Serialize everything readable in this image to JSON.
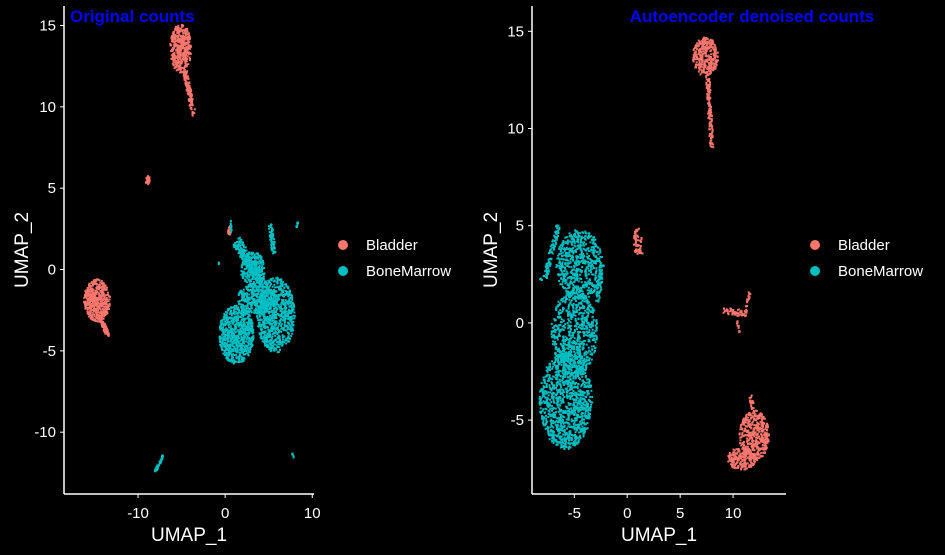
{
  "page": {
    "background": "#000000"
  },
  "chart_data": [
    {
      "type": "scatter",
      "title": "Original counts",
      "title_color": "#0000FF",
      "xlabel": "UMAP_1",
      "ylabel": "UMAP_2",
      "xlim": [
        -18.5,
        10.2
      ],
      "ylim": [
        -13.8,
        16.2
      ],
      "xticks": [
        -10,
        0,
        10
      ],
      "yticks": [
        -10,
        -5,
        0,
        5,
        10,
        15
      ],
      "grid": false,
      "legend": "right",
      "series": [
        {
          "name": "Bladder",
          "color": "#F8766D",
          "clusters": [
            {
              "shape": "ellipse",
              "cx": -5.1,
              "cy": 13.6,
              "rx": 1.2,
              "ry": 1.5,
              "n": 420,
              "seed": 11
            },
            {
              "shape": "line",
              "x1": -4.6,
              "y1": 12.2,
              "x2": -3.6,
              "y2": 9.5,
              "w": 0.5,
              "n": 110,
              "seed": 12
            },
            {
              "shape": "ellipse",
              "cx": -14.7,
              "cy": -1.9,
              "rx": 1.5,
              "ry": 1.3,
              "n": 480,
              "seed": 13
            },
            {
              "shape": "line",
              "x1": -14.3,
              "y1": -3.0,
              "x2": -13.4,
              "y2": -4.1,
              "w": 0.35,
              "n": 60,
              "seed": 14
            },
            {
              "shape": "ellipse",
              "cx": -8.9,
              "cy": 5.5,
              "rx": 0.25,
              "ry": 0.3,
              "n": 30,
              "seed": 15
            },
            {
              "shape": "ellipse",
              "cx": 0.5,
              "cy": 2.4,
              "rx": 0.2,
              "ry": 0.3,
              "n": 20,
              "seed": 16
            }
          ]
        },
        {
          "name": "BoneMarrow",
          "color": "#00BFC4",
          "clusters": [
            {
              "shape": "line",
              "x1": 1.2,
              "y1": 1.8,
              "x2": 4.5,
              "y2": -1.0,
              "w": 0.9,
              "n": 260,
              "seed": 21
            },
            {
              "shape": "ellipse",
              "cx": 3.2,
              "cy": 0.0,
              "rx": 1.4,
              "ry": 1.1,
              "n": 220,
              "seed": 22
            },
            {
              "shape": "ellipse",
              "cx": 1.3,
              "cy": -4.0,
              "rx": 2.0,
              "ry": 1.8,
              "n": 700,
              "seed": 23
            },
            {
              "shape": "ellipse",
              "cx": 5.8,
              "cy": -2.8,
              "rx": 2.2,
              "ry": 2.3,
              "n": 800,
              "seed": 24
            },
            {
              "shape": "ellipse",
              "cx": 3.6,
              "cy": -1.8,
              "rx": 2.2,
              "ry": 0.9,
              "n": 350,
              "seed": 25
            },
            {
              "shape": "line",
              "x1": 5.2,
              "y1": 2.8,
              "x2": 5.6,
              "y2": 1.0,
              "w": 0.45,
              "n": 70,
              "seed": 26
            },
            {
              "shape": "line",
              "x1": 0.7,
              "y1": 3.0,
              "x2": 0.7,
              "y2": 2.2,
              "w": 0.12,
              "n": 12,
              "seed": 27
            },
            {
              "shape": "line",
              "x1": 8.4,
              "y1": 3.0,
              "x2": 8.2,
              "y2": 2.6,
              "w": 0.1,
              "n": 8,
              "seed": 28
            },
            {
              "shape": "line",
              "x1": -8.1,
              "y1": -12.5,
              "x2": -7.1,
              "y2": -11.4,
              "w": 0.2,
              "n": 40,
              "seed": 29
            },
            {
              "shape": "line",
              "x1": 7.9,
              "y1": -11.6,
              "x2": 7.7,
              "y2": -11.3,
              "w": 0.1,
              "n": 6,
              "seed": 30
            },
            {
              "shape": "ellipse",
              "cx": -0.7,
              "cy": 0.4,
              "rx": 0.08,
              "ry": 0.08,
              "n": 3,
              "seed": 31
            }
          ]
        }
      ]
    },
    {
      "type": "scatter",
      "title": "Autoencoder denoised counts",
      "title_color": "#0000FF",
      "xlabel": "UMAP_1",
      "ylabel": "UMAP_2",
      "xlim": [
        -9.0,
        15.0
      ],
      "ylim": [
        -8.8,
        16.3
      ],
      "xticks": [
        -5,
        0,
        5,
        10
      ],
      "yticks": [
        -5,
        0,
        5,
        10,
        15
      ],
      "grid": false,
      "legend": "right",
      "series": [
        {
          "name": "Bladder",
          "color": "#F8766D",
          "clusters": [
            {
              "shape": "ellipse",
              "cx": 7.4,
              "cy": 13.7,
              "rx": 1.2,
              "ry": 1.0,
              "n": 320,
              "seed": 41
            },
            {
              "shape": "line",
              "x1": 7.6,
              "y1": 12.8,
              "x2": 8.0,
              "y2": 9.0,
              "w": 0.35,
              "n": 130,
              "seed": 42
            },
            {
              "shape": "ellipse",
              "cx": 12.0,
              "cy": -5.8,
              "rx": 1.4,
              "ry": 1.3,
              "n": 420,
              "seed": 43
            },
            {
              "shape": "ellipse",
              "cx": 10.8,
              "cy": -7.0,
              "rx": 1.3,
              "ry": 0.6,
              "n": 200,
              "seed": 44
            },
            {
              "shape": "line",
              "x1": 11.9,
              "y1": -4.4,
              "x2": 11.6,
              "y2": -3.7,
              "w": 0.3,
              "n": 20,
              "seed": 45
            },
            {
              "shape": "line",
              "x1": 9.0,
              "y1": 0.6,
              "x2": 11.3,
              "y2": 0.5,
              "w": 0.35,
              "n": 50,
              "seed": 46
            },
            {
              "shape": "line",
              "x1": 11.0,
              "y1": 0.4,
              "x2": 11.7,
              "y2": 1.8,
              "w": 0.2,
              "n": 20,
              "seed": 47
            },
            {
              "shape": "line",
              "x1": 10.4,
              "y1": 0.2,
              "x2": 10.6,
              "y2": -0.6,
              "w": 0.15,
              "n": 10,
              "seed": 48
            },
            {
              "shape": "ellipse",
              "cx": 1.0,
              "cy": 4.2,
              "rx": 0.4,
              "ry": 0.7,
              "n": 45,
              "seed": 49
            },
            {
              "shape": "line",
              "x1": 1.0,
              "y1": 3.7,
              "x2": 1.5,
              "y2": 3.6,
              "w": 0.15,
              "n": 10,
              "seed": 50
            }
          ]
        },
        {
          "name": "BoneMarrow",
          "color": "#00BFC4",
          "clusters": [
            {
              "shape": "ellipse",
              "cx": -5.8,
              "cy": -4.0,
              "rx": 2.5,
              "ry": 2.5,
              "n": 1100,
              "seed": 61
            },
            {
              "shape": "ellipse",
              "cx": -5.0,
              "cy": -0.5,
              "rx": 2.2,
              "ry": 2.2,
              "n": 700,
              "seed": 62
            },
            {
              "shape": "ellipse",
              "cx": -4.5,
              "cy": 3.0,
              "rx": 2.2,
              "ry": 1.8,
              "n": 600,
              "seed": 63
            },
            {
              "shape": "line",
              "x1": -6.5,
              "y1": 5.0,
              "x2": -7.8,
              "y2": 2.3,
              "w": 0.4,
              "n": 90,
              "seed": 64
            },
            {
              "shape": "line",
              "x1": -2.8,
              "y1": 1.0,
              "x2": -2.4,
              "y2": 3.0,
              "w": 0.4,
              "n": 60,
              "seed": 65
            },
            {
              "shape": "line",
              "x1": -8.2,
              "y1": 2.3,
              "x2": -8.0,
              "y2": 2.1,
              "w": 0.1,
              "n": 4,
              "seed": 66
            }
          ]
        }
      ]
    }
  ]
}
